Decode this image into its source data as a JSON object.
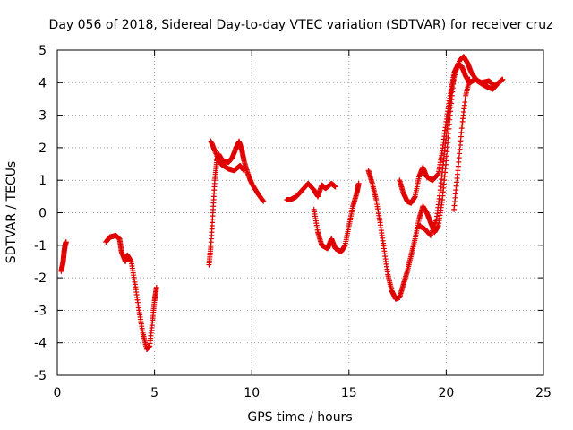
{
  "chart_data": {
    "type": "scatter",
    "title": "Day 056 of 2018, Sidereal Day-to-day VTEC variation (SDTVAR) for receiver cruz",
    "xlabel": "GPS time / hours",
    "ylabel": "SDTVAR / TECUs",
    "xlim": [
      0,
      25
    ],
    "ylim": [
      -5,
      5
    ],
    "xticks": [
      0,
      5,
      10,
      15,
      20,
      25
    ],
    "yticks": [
      -5,
      -4,
      -3,
      -2,
      -1,
      0,
      1,
      2,
      3,
      4,
      5
    ],
    "grid": true,
    "marker": "+",
    "color": "#e00000",
    "series": [
      {
        "name": "SDTVAR",
        "segments": [
          [
            [
              0.2,
              -1.8
            ],
            [
              0.3,
              -1.5
            ],
            [
              0.35,
              -1.2
            ],
            [
              0.4,
              -1.0
            ],
            [
              0.45,
              -0.9
            ]
          ],
          [
            [
              2.5,
              -0.9
            ],
            [
              2.7,
              -0.75
            ],
            [
              3.0,
              -0.7
            ],
            [
              3.2,
              -0.8
            ],
            [
              3.3,
              -1.2
            ],
            [
              3.5,
              -1.5
            ],
            [
              3.6,
              -1.3
            ],
            [
              3.8,
              -1.5
            ],
            [
              4.0,
              -2.2
            ],
            [
              4.2,
              -3.0
            ],
            [
              4.4,
              -3.7
            ],
            [
              4.6,
              -4.2
            ],
            [
              4.75,
              -4.1
            ],
            [
              4.9,
              -3.3
            ],
            [
              5.0,
              -2.7
            ],
            [
              5.1,
              -2.3
            ]
          ],
          [
            [
              7.8,
              -1.6
            ],
            [
              7.9,
              -1.0
            ],
            [
              8.0,
              0.0
            ],
            [
              8.1,
              1.0
            ],
            [
              8.2,
              1.6
            ],
            [
              8.3,
              1.8
            ],
            [
              8.5,
              1.6
            ],
            [
              8.8,
              1.55
            ],
            [
              9.0,
              1.7
            ],
            [
              9.2,
              2.0
            ],
            [
              9.35,
              2.2
            ],
            [
              9.5,
              1.9
            ],
            [
              9.6,
              1.6
            ],
            [
              9.8,
              1.2
            ],
            [
              10.0,
              0.9
            ],
            [
              10.3,
              0.6
            ],
            [
              10.6,
              0.35
            ]
          ],
          [
            [
              7.9,
              2.2
            ],
            [
              8.1,
              1.9
            ],
            [
              8.4,
              1.5
            ],
            [
              8.8,
              1.35
            ],
            [
              9.1,
              1.3
            ],
            [
              9.4,
              1.45
            ],
            [
              9.6,
              1.3
            ]
          ],
          [
            [
              11.8,
              0.4
            ],
            [
              12.0,
              0.4
            ],
            [
              12.3,
              0.5
            ],
            [
              12.6,
              0.7
            ],
            [
              12.9,
              0.9
            ],
            [
              13.2,
              0.7
            ],
            [
              13.4,
              0.5
            ],
            [
              13.6,
              0.85
            ],
            [
              13.8,
              0.75
            ],
            [
              14.1,
              0.9
            ],
            [
              14.3,
              0.8
            ]
          ],
          [
            [
              13.2,
              0.1
            ],
            [
              13.4,
              -0.6
            ],
            [
              13.6,
              -1.0
            ],
            [
              13.9,
              -1.1
            ],
            [
              14.1,
              -0.8
            ],
            [
              14.3,
              -1.1
            ],
            [
              14.6,
              -1.2
            ],
            [
              14.8,
              -1.0
            ],
            [
              15.0,
              -0.4
            ],
            [
              15.2,
              0.2
            ],
            [
              15.4,
              0.6
            ],
            [
              15.5,
              0.9
            ]
          ],
          [
            [
              16.0,
              1.3
            ],
            [
              16.2,
              0.9
            ],
            [
              16.4,
              0.4
            ],
            [
              16.6,
              -0.3
            ],
            [
              16.8,
              -1.1
            ],
            [
              17.0,
              -1.9
            ],
            [
              17.2,
              -2.4
            ],
            [
              17.4,
              -2.65
            ],
            [
              17.6,
              -2.6
            ],
            [
              17.8,
              -2.2
            ],
            [
              18.0,
              -1.8
            ],
            [
              18.2,
              -1.3
            ],
            [
              18.4,
              -0.8
            ],
            [
              18.6,
              -0.2
            ],
            [
              18.8,
              0.2
            ],
            [
              19.0,
              0.0
            ],
            [
              19.2,
              -0.3
            ],
            [
              19.4,
              -0.6
            ],
            [
              19.6,
              -0.4
            ],
            [
              19.8,
              0.4
            ],
            [
              20.0,
              1.6
            ],
            [
              20.2,
              3.0
            ],
            [
              20.4,
              4.2
            ],
            [
              20.7,
              4.7
            ],
            [
              20.9,
              4.8
            ],
            [
              21.1,
              4.6
            ],
            [
              21.3,
              4.3
            ],
            [
              21.6,
              4.05
            ],
            [
              22.0,
              3.9
            ],
            [
              22.4,
              3.8
            ],
            [
              22.7,
              4.0
            ],
            [
              22.9,
              4.1
            ]
          ],
          [
            [
              17.6,
              1.0
            ],
            [
              17.8,
              0.6
            ],
            [
              18.0,
              0.35
            ],
            [
              18.2,
              0.3
            ],
            [
              18.4,
              0.5
            ],
            [
              18.6,
              1.1
            ],
            [
              18.8,
              1.4
            ],
            [
              19.0,
              1.1
            ],
            [
              19.3,
              1.0
            ],
            [
              19.6,
              1.2
            ],
            [
              19.8,
              1.9
            ],
            [
              20.0,
              2.8
            ],
            [
              20.2,
              3.6
            ],
            [
              20.4,
              4.3
            ],
            [
              20.6,
              4.55
            ],
            [
              20.8,
              4.5
            ],
            [
              21.0,
              4.2
            ],
            [
              21.2,
              4.0
            ],
            [
              21.5,
              4.1
            ],
            [
              21.8,
              4.0
            ],
            [
              22.2,
              4.05
            ],
            [
              22.5,
              3.9
            ],
            [
              22.8,
              4.05
            ]
          ],
          [
            [
              18.6,
              -0.4
            ],
            [
              18.9,
              -0.5
            ],
            [
              19.2,
              -0.7
            ],
            [
              19.5,
              -0.2
            ],
            [
              19.7,
              0.7
            ],
            [
              19.9,
              1.8
            ],
            [
              20.1,
              2.9
            ],
            [
              20.3,
              3.9
            ],
            [
              20.5,
              4.4
            ]
          ],
          [
            [
              20.4,
              0.1
            ],
            [
              20.6,
              1.3
            ],
            [
              20.8,
              2.6
            ],
            [
              21.0,
              3.6
            ],
            [
              21.2,
              4.1
            ]
          ]
        ]
      }
    ]
  }
}
